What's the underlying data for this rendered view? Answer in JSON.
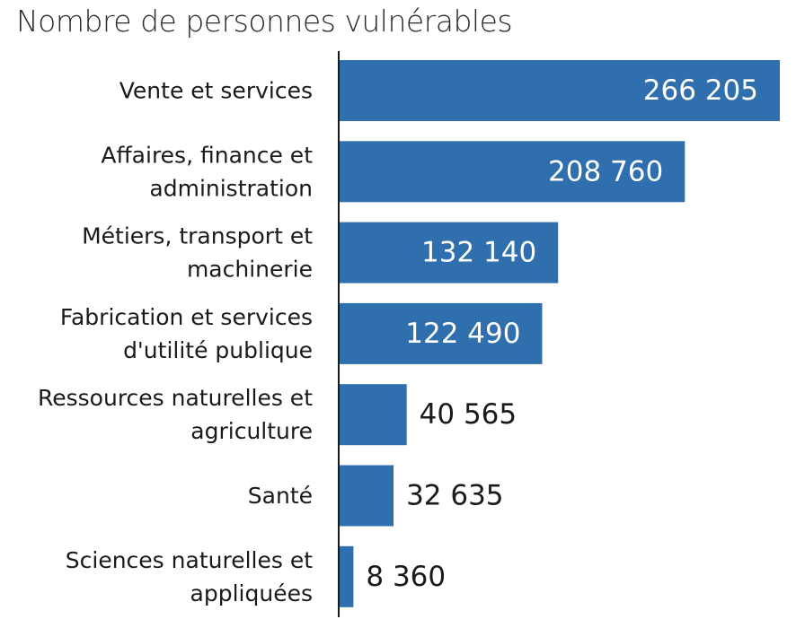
{
  "chart_data": {
    "type": "bar",
    "orientation": "horizontal",
    "title": "Nombre de personnes vulnérables",
    "xlabel": "",
    "ylabel": "",
    "grid": false,
    "categories": [
      [
        "Vente et services"
      ],
      [
        "Affaires, finance et",
        "administration"
      ],
      [
        "Métiers, transport et",
        "machinerie"
      ],
      [
        "Fabrication et services",
        "d'utilité publique"
      ],
      [
        "Ressources naturelles et",
        "agriculture"
      ],
      [
        "Santé"
      ],
      [
        "Sciences naturelles et",
        "appliquées"
      ]
    ],
    "values": [
      266205,
      208760,
      132140,
      122490,
      40565,
      32635,
      8360
    ],
    "value_labels": [
      "266 205",
      "208 760",
      "132 140",
      "122 490",
      "40 565",
      "32 635",
      "8 360"
    ],
    "xlim": [
      0,
      266205
    ],
    "colors": {
      "bar": "#2f6fae",
      "axis": "#1a1a1a",
      "label_inside": "#ffffff",
      "label_outside": "#1a1a1a"
    }
  }
}
